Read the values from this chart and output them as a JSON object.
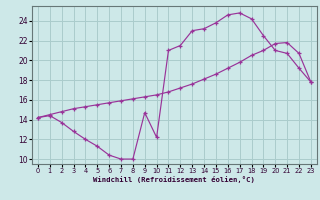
{
  "xlabel": "Windchill (Refroidissement éolien,°C)",
  "background_color": "#cde8e8",
  "grid_color": "#aacccc",
  "line_color": "#993399",
  "xlim": [
    -0.5,
    23.5
  ],
  "ylim": [
    9.5,
    25.5
  ],
  "xticks": [
    0,
    1,
    2,
    3,
    4,
    5,
    6,
    7,
    8,
    9,
    10,
    11,
    12,
    13,
    14,
    15,
    16,
    17,
    18,
    19,
    20,
    21,
    22,
    23
  ],
  "yticks": [
    10,
    12,
    14,
    16,
    18,
    20,
    22,
    24
  ],
  "curve1_x": [
    0,
    1,
    2,
    3,
    4,
    5,
    6,
    7,
    8,
    9,
    10,
    11,
    12,
    13,
    14,
    15,
    16,
    17,
    18,
    19,
    20,
    21,
    22,
    23
  ],
  "curve1_y": [
    14.2,
    14.4,
    13.7,
    12.8,
    12.0,
    11.3,
    10.4,
    10.0,
    10.0,
    14.7,
    12.2,
    21.0,
    21.5,
    23.0,
    23.2,
    23.8,
    24.6,
    24.8,
    24.2,
    22.5,
    21.0,
    20.7,
    19.2,
    17.8
  ],
  "curve2_x": [
    0,
    1,
    2,
    3,
    4,
    5,
    6,
    7,
    8,
    9,
    10,
    11,
    12,
    13,
    14,
    15,
    16,
    17,
    18,
    19,
    20,
    21,
    22,
    23
  ],
  "curve2_y": [
    14.2,
    14.5,
    14.8,
    15.1,
    15.3,
    15.5,
    15.7,
    15.9,
    16.1,
    16.3,
    16.5,
    16.8,
    17.2,
    17.6,
    18.1,
    18.6,
    19.2,
    19.8,
    20.5,
    21.0,
    21.7,
    21.8,
    20.7,
    17.8
  ]
}
